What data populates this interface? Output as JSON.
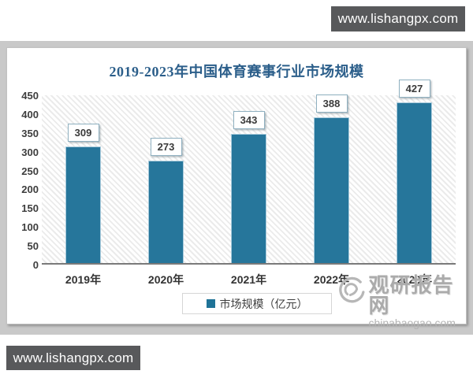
{
  "watermarks": {
    "top_badge": "www.lishangpx.com",
    "bottom_badge": "www.lishangpx.com",
    "site_name": "观研报告网",
    "site_domain": "chinabaogao.com"
  },
  "chart_data": {
    "type": "bar",
    "title": "2019-2023年中国体育赛事行业市场规模",
    "categories": [
      "2019年",
      "2020年",
      "2021年",
      "2022年",
      "2023年"
    ],
    "values": [
      309,
      273,
      343,
      388,
      427
    ],
    "series_name": "市场规模（亿元）",
    "xlabel": "",
    "ylabel": "",
    "ylim": [
      0,
      450
    ],
    "ytick_step": 50,
    "grid": false,
    "legend_position": "bottom",
    "bar_color": "#26769B",
    "title_color": "#2B5E8A",
    "background_hatch": "diagonal",
    "frame_color": "#C9C9C9",
    "badge_color": "#58595B",
    "watermark_color": "#ABABAB"
  }
}
